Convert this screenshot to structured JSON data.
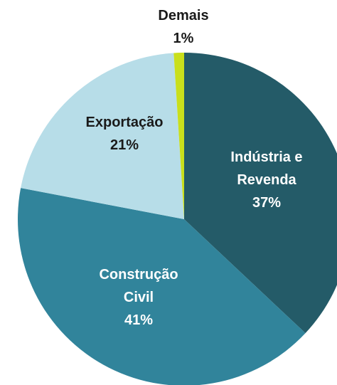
{
  "chart_data": {
    "type": "pie",
    "categories": [
      "Indústria e Revenda",
      "Construção Civil",
      "Exportação",
      "Demais"
    ],
    "values": [
      37,
      41,
      21,
      1
    ],
    "value_labels": [
      "37%",
      "41%",
      "21%",
      "1%"
    ],
    "colors": [
      "#245b68",
      "#31849b",
      "#b7dde8",
      "#c9df1c"
    ]
  }
}
